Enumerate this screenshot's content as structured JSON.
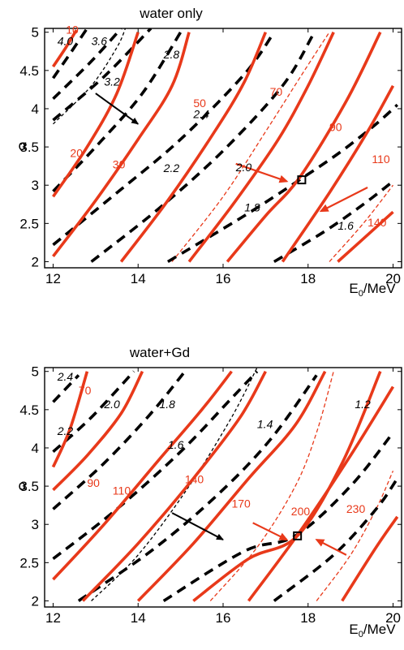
{
  "chart_data": [
    {
      "type": "line",
      "title": "water only",
      "xlabel": "E0/MeV",
      "ylabel": "α",
      "xlim": [
        11.8,
        20.2
      ],
      "ylim": [
        1.92,
        5.05
      ],
      "x_ticks": [
        "12",
        "14",
        "16",
        "18",
        "20"
      ],
      "y_ticks": [
        "2",
        "2.5",
        "3",
        "3.5",
        "4",
        "4.5",
        "5"
      ],
      "colors": {
        "black": "#000000",
        "red": "#e8391a"
      },
      "black_dashed_contours": [
        {
          "label": "4.0",
          "points": [
            [
              12,
              4.4
            ],
            [
              12.4,
              4.72
            ],
            [
              12.8,
              5.05
            ]
          ]
        },
        {
          "label": "3.6",
          "points": [
            [
              12,
              4.13
            ],
            [
              12.9,
              4.62
            ],
            [
              13.6,
              5.05
            ]
          ]
        },
        {
          "label": "3.2",
          "points": [
            [
              12,
              3.85
            ],
            [
              13.2,
              4.42
            ],
            [
              14.3,
              5.05
            ]
          ]
        },
        {
          "label": "2.8",
          "points": [
            [
              12,
              2.92
            ],
            [
              13.0,
              3.5
            ],
            [
              14.1,
              4.2
            ],
            [
              15.0,
              5.0
            ]
          ]
        },
        {
          "label": "2.4",
          "points": [
            [
              12,
              2.22
            ],
            [
              13.5,
              2.9
            ],
            [
              15.0,
              3.6
            ],
            [
              16.5,
              4.45
            ],
            [
              17.2,
              5.0
            ]
          ]
        },
        {
          "label": "2.2",
          "points": [
            [
              12.9,
              2.0
            ],
            [
              14.5,
              2.7
            ],
            [
              16.0,
              3.45
            ],
            [
              17.4,
              4.3
            ],
            [
              18.1,
              4.95
            ]
          ]
        },
        {
          "label": "1.8",
          "points": [
            [
              14.7,
              2.0
            ],
            [
              16.5,
              2.6
            ],
            [
              17.8,
              3.07
            ],
            [
              18.8,
              3.45
            ],
            [
              19.6,
              3.8
            ],
            [
              20.1,
              4.05
            ]
          ]
        },
        {
          "label": "1.6",
          "points": [
            [
              17.2,
              2.0
            ],
            [
              18.4,
              2.4
            ],
            [
              19.3,
              2.75
            ],
            [
              20.0,
              3.05
            ]
          ]
        }
      ],
      "black_thin_dashed": [
        {
          "points": [
            [
              12,
              3.8
            ],
            [
              12.9,
              4.3
            ],
            [
              13.5,
              4.8
            ],
            [
              13.7,
              5.05
            ]
          ]
        }
      ],
      "red_solid_contours": [
        {
          "label": "10",
          "points": [
            [
              12,
              4.55
            ],
            [
              12.3,
              4.8
            ],
            [
              12.55,
              5.03
            ]
          ]
        },
        {
          "label": "20",
          "points": [
            [
              12,
              2.85
            ],
            [
              12.8,
              3.5
            ],
            [
              13.5,
              4.2
            ],
            [
              14.0,
              5.0
            ]
          ]
        },
        {
          "label": "30",
          "points": [
            [
              12,
              2.07
            ],
            [
              13.0,
              2.8
            ],
            [
              14.0,
              3.6
            ],
            [
              14.8,
              4.3
            ],
            [
              15.2,
              5.0
            ]
          ]
        },
        {
          "label": "50",
          "points": [
            [
              13.6,
              2.0
            ],
            [
              14.7,
              2.8
            ],
            [
              15.8,
              3.7
            ],
            [
              16.5,
              4.35
            ],
            [
              17.0,
              5.0
            ]
          ]
        },
        {
          "label": "70",
          "points": [
            [
              15.2,
              2.0
            ],
            [
              16.3,
              2.8
            ],
            [
              17.3,
              3.6
            ],
            [
              18.0,
              4.3
            ],
            [
              18.6,
              5.0
            ]
          ]
        },
        {
          "label": "90",
          "points": [
            [
              16.1,
              2.0
            ],
            [
              17.0,
              2.6
            ],
            [
              17.8,
              3.1
            ],
            [
              18.9,
              4.1
            ],
            [
              19.7,
              5.0
            ]
          ]
        },
        {
          "label": "110",
          "points": [
            [
              17.4,
              2.0
            ],
            [
              18.5,
              2.9
            ],
            [
              19.4,
              3.7
            ],
            [
              20.0,
              4.3
            ]
          ]
        },
        {
          "label": "140",
          "points": [
            [
              18.7,
              2.0
            ],
            [
              19.5,
              2.4
            ],
            [
              20.0,
              2.65
            ]
          ]
        }
      ],
      "red_thin_dashed": [
        {
          "points": [
            [
              14.8,
              2.0
            ],
            [
              16.0,
              2.85
            ],
            [
              17.0,
              3.7
            ],
            [
              17.8,
              4.4
            ],
            [
              18.5,
              5.0
            ]
          ]
        },
        {
          "points": [
            [
              18.5,
              2.0
            ],
            [
              19.3,
              2.5
            ],
            [
              20.0,
              3.0
            ]
          ]
        }
      ],
      "arrows": [
        {
          "color": "black",
          "from": [
            13.0,
            4.2
          ],
          "to": [
            14.0,
            3.8
          ]
        },
        {
          "color": "red",
          "from": [
            16.3,
            3.28
          ],
          "to": [
            17.5,
            3.05
          ]
        },
        {
          "color": "red",
          "from": [
            19.4,
            2.97
          ],
          "to": [
            18.3,
            2.66
          ]
        }
      ],
      "marker": {
        "shape": "open-square",
        "x": 17.85,
        "y": 3.07
      },
      "annotations_black": [
        {
          "text": "4.0",
          "x": 12.1,
          "y": 4.83
        },
        {
          "text": "3.6",
          "x": 12.9,
          "y": 4.83
        },
        {
          "text": "3.2",
          "x": 13.2,
          "y": 4.3
        },
        {
          "text": "2.8",
          "x": 14.6,
          "y": 4.66
        },
        {
          "text": "2.4",
          "x": 15.3,
          "y": 3.88
        },
        {
          "text": "2.2",
          "x": 14.6,
          "y": 3.17
        },
        {
          "text": "2.0",
          "x": 16.3,
          "y": 3.18
        },
        {
          "text": "1.8",
          "x": 16.5,
          "y": 2.66
        },
        {
          "text": "1.6",
          "x": 18.7,
          "y": 2.42
        }
      ],
      "annotations_red": [
        {
          "text": "10",
          "x": 12.3,
          "y": 4.98
        },
        {
          "text": "20",
          "x": 12.4,
          "y": 3.37
        },
        {
          "text": "30",
          "x": 13.4,
          "y": 3.22
        },
        {
          "text": "50",
          "x": 15.3,
          "y": 4.02
        },
        {
          "text": "70",
          "x": 17.1,
          "y": 4.17
        },
        {
          "text": "90",
          "x": 18.5,
          "y": 3.71
        },
        {
          "text": "110",
          "x": 19.5,
          "y": 3.29
        },
        {
          "text": "140",
          "x": 19.4,
          "y": 2.46
        }
      ]
    },
    {
      "type": "line",
      "title": "water+Gd",
      "xlabel": "E0/MeV",
      "ylabel": "α",
      "xlim": [
        11.8,
        20.2
      ],
      "ylim": [
        1.92,
        5.05
      ],
      "x_ticks": [
        "12",
        "14",
        "16",
        "18",
        "20"
      ],
      "y_ticks": [
        "2",
        "2.5",
        "3",
        "3.5",
        "4",
        "4.5",
        "5"
      ],
      "colors": {
        "black": "#000000",
        "red": "#e8391a"
      },
      "black_dashed_contours": [
        {
          "label": "2.4",
          "points": [
            [
              12,
              4.6
            ],
            [
              12.6,
              4.95
            ]
          ]
        },
        {
          "label": "2.2",
          "points": [
            [
              12,
              3.95
            ],
            [
              12.9,
              4.4
            ],
            [
              13.9,
              5.0
            ]
          ]
        },
        {
          "label": "2.0",
          "points": [
            [
              12,
              3.2
            ],
            [
              13.2,
              3.8
            ],
            [
              14.3,
              4.45
            ],
            [
              15.1,
              5.0
            ]
          ]
        },
        {
          "label": "1.8",
          "points": [
            [
              12,
              2.55
            ],
            [
              13.5,
              3.2
            ],
            [
              15.0,
              3.95
            ],
            [
              16.2,
              4.65
            ],
            [
              16.8,
              5.0
            ]
          ]
        },
        {
          "label": "1.6",
          "points": [
            [
              12.6,
              2.0
            ],
            [
              14.3,
              2.65
            ],
            [
              15.8,
              3.35
            ],
            [
              17.1,
              4.1
            ],
            [
              18.2,
              4.95
            ]
          ]
        },
        {
          "label": "1.4",
          "points": [
            [
              14.6,
              2.0
            ],
            [
              16.5,
              2.65
            ],
            [
              17.7,
              2.85
            ],
            [
              19.0,
              3.5
            ],
            [
              20.0,
              4.2
            ]
          ]
        },
        {
          "label": "1.2",
          "points": [
            [
              17.2,
              2.0
            ],
            [
              18.6,
              2.6
            ],
            [
              19.6,
              3.2
            ],
            [
              20.1,
              3.6
            ]
          ]
        }
      ],
      "black_thin_dashed": [
        {
          "points": [
            [
              12.9,
              2.0
            ],
            [
              14.0,
              2.6
            ],
            [
              15.2,
              3.5
            ],
            [
              16.2,
              4.4
            ],
            [
              16.8,
              5.05
            ]
          ]
        }
      ],
      "red_solid_contours": [
        {
          "label": "70",
          "points": [
            [
              12.0,
              3.75
            ],
            [
              12.4,
              4.25
            ],
            [
              12.8,
              5.0
            ]
          ]
        },
        {
          "label": "90",
          "points": [
            [
              12.0,
              3.45
            ],
            [
              12.8,
              3.9
            ],
            [
              13.6,
              4.45
            ],
            [
              14.1,
              5.0
            ]
          ]
        },
        {
          "label": "110",
          "points": [
            [
              12.0,
              2.28
            ],
            [
              13.2,
              3.0
            ],
            [
              14.5,
              3.85
            ],
            [
              15.5,
              4.5
            ],
            [
              16.2,
              5.0
            ]
          ]
        },
        {
          "label": "140",
          "points": [
            [
              12.7,
              2.0
            ],
            [
              14.0,
              2.75
            ],
            [
              15.3,
              3.6
            ],
            [
              16.4,
              4.4
            ],
            [
              17.0,
              5.0
            ]
          ]
        },
        {
          "label": "170",
          "points": [
            [
              14.0,
              2.0
            ],
            [
              15.3,
              2.75
            ],
            [
              16.6,
              3.6
            ],
            [
              17.7,
              4.3
            ],
            [
              18.4,
              5.0
            ]
          ]
        },
        {
          "label": "200",
          "points": [
            [
              15.3,
              2.0
            ],
            [
              16.6,
              2.55
            ],
            [
              17.75,
              2.85
            ],
            [
              18.8,
              3.8
            ],
            [
              19.7,
              5.0
            ]
          ]
        },
        {
          "label": "230",
          "points": [
            [
              16.6,
              2.0
            ],
            [
              17.8,
              2.9
            ],
            [
              19.0,
              3.9
            ],
            [
              20.0,
              4.8
            ]
          ]
        },
        {
          "label": "",
          "points": [
            [
              18.8,
              2.0
            ],
            [
              19.6,
              2.7
            ],
            [
              20.1,
              3.1
            ]
          ]
        }
      ],
      "red_thin_dashed": [
        {
          "points": [
            [
              15.7,
              2.0
            ],
            [
              16.8,
              2.7
            ],
            [
              17.7,
              3.5
            ],
            [
              18.2,
              4.2
            ],
            [
              18.6,
              5.0
            ]
          ]
        },
        {
          "points": [
            [
              18.2,
              2.0
            ],
            [
              19.0,
              2.6
            ],
            [
              19.6,
              3.2
            ],
            [
              20.0,
              3.7
            ]
          ]
        }
      ],
      "arrows": [
        {
          "color": "black",
          "from": [
            14.8,
            3.15
          ],
          "to": [
            16.0,
            2.8
          ]
        },
        {
          "color": "red",
          "from": [
            16.7,
            3.02
          ],
          "to": [
            17.5,
            2.8
          ]
        },
        {
          "color": "red",
          "from": [
            18.9,
            2.6
          ],
          "to": [
            18.2,
            2.8
          ]
        }
      ],
      "marker": {
        "shape": "open-square",
        "x": 17.75,
        "y": 2.85
      },
      "annotations_black": [
        {
          "text": "2.4",
          "x": 12.1,
          "y": 4.88
        },
        {
          "text": "2.2",
          "x": 12.1,
          "y": 4.17
        },
        {
          "text": "2.0",
          "x": 13.2,
          "y": 4.52
        },
        {
          "text": "1.8",
          "x": 14.5,
          "y": 4.52
        },
        {
          "text": "1.6",
          "x": 14.7,
          "y": 3.99
        },
        {
          "text": "1.4",
          "x": 16.8,
          "y": 4.26
        },
        {
          "text": "1.2",
          "x": 19.1,
          "y": 4.52
        }
      ],
      "annotations_red": [
        {
          "text": "70",
          "x": 12.6,
          "y": 4.7
        },
        {
          "text": "90",
          "x": 12.8,
          "y": 3.49
        },
        {
          "text": "110",
          "x": 13.4,
          "y": 3.39
        },
        {
          "text": "140",
          "x": 15.1,
          "y": 3.54
        },
        {
          "text": "170",
          "x": 16.2,
          "y": 3.22
        },
        {
          "text": "200",
          "x": 17.6,
          "y": 3.12
        },
        {
          "text": "230",
          "x": 18.9,
          "y": 3.15
        }
      ]
    }
  ]
}
